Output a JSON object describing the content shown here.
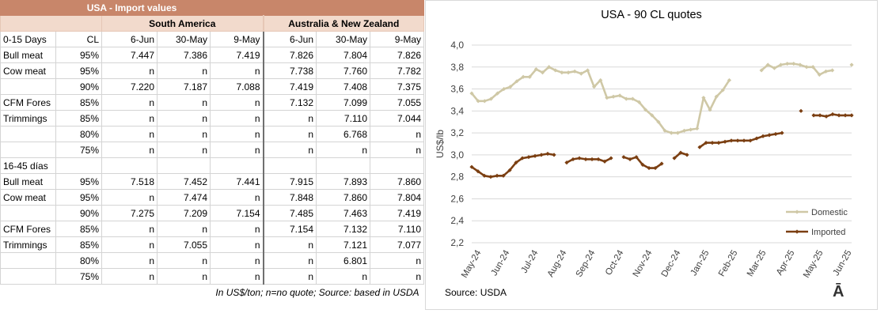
{
  "table": {
    "title": "USA - Import values",
    "regions": [
      "South America",
      "Australia & New Zealand"
    ],
    "header": [
      "0-15 Days",
      "CL",
      "6-Jun",
      "30-May",
      "9-May",
      "6-Jun",
      "30-May",
      "9-May"
    ],
    "rows": [
      [
        "Bull meat",
        "95%",
        "7.447",
        "7.386",
        "7.419",
        "7.826",
        "7.804",
        "7.826"
      ],
      [
        "Cow meat",
        "95%",
        "n",
        "n",
        "n",
        "7.738",
        "7.760",
        "7.782"
      ],
      [
        "",
        "90%",
        "7.220",
        "7.187",
        "7.088",
        "7.419",
        "7.408",
        "7.375"
      ],
      [
        "CFM Fores",
        "85%",
        "n",
        "n",
        "n",
        "7.132",
        "7.099",
        "7.055"
      ],
      [
        "Trimmings",
        "85%",
        "n",
        "n",
        "n",
        "n",
        "7.110",
        "7.044"
      ],
      [
        "",
        "80%",
        "n",
        "n",
        "n",
        "n",
        "6.768",
        "n"
      ],
      [
        "",
        "75%",
        "n",
        "n",
        "n",
        "n",
        "n",
        "n"
      ],
      [
        "16-45 días",
        "",
        "",
        "",
        "",
        "",
        "",
        ""
      ],
      [
        "Bull meat",
        "95%",
        "7.518",
        "7.452",
        "7.441",
        "7.915",
        "7.893",
        "7.860"
      ],
      [
        "Cow meat",
        "95%",
        "n",
        "7.474",
        "n",
        "7.848",
        "7.860",
        "7.804"
      ],
      [
        "",
        "90%",
        "7.275",
        "7.209",
        "7.154",
        "7.485",
        "7.463",
        "7.419"
      ],
      [
        "CFM Fores",
        "85%",
        "n",
        "n",
        "n",
        "7.154",
        "7.132",
        "7.110"
      ],
      [
        "Trimmings",
        "85%",
        "n",
        "7.055",
        "n",
        "n",
        "7.121",
        "7.077"
      ],
      [
        "",
        "80%",
        "n",
        "n",
        "n",
        "n",
        "6.801",
        "n"
      ],
      [
        "",
        "75%",
        "n",
        "n",
        "n",
        "n",
        "n",
        "n"
      ]
    ],
    "note": "In US$/ton; n=no quote; Source: based in USDA"
  },
  "chart_data": {
    "type": "line",
    "title": "USA - 90 CL quotes",
    "ylabel": "US$/lb",
    "xlabel": "",
    "ylim": [
      2.2,
      4.0
    ],
    "yticks": [
      "2,2",
      "2,4",
      "2,6",
      "2,8",
      "3,0",
      "3,2",
      "3,4",
      "3,6",
      "3,8",
      "4,0"
    ],
    "xtick_labels": [
      "May-24",
      "Jun-24",
      "Jul-24",
      "Aug-24",
      "Sep-24",
      "Oct-24",
      "Nov-24",
      "Dec-24",
      "Jan-25",
      "Feb-25",
      "Mar-25",
      "Apr-25",
      "May-25",
      "Jun-25"
    ],
    "grid": true,
    "legend_position": "bottom-right",
    "source": "Source: USDA",
    "series": [
      {
        "name": "Domestic",
        "color": "#cfc8a6",
        "values": [
          3.56,
          3.49,
          3.49,
          3.51,
          3.56,
          3.6,
          3.62,
          3.67,
          3.71,
          3.71,
          3.78,
          3.75,
          3.8,
          3.77,
          3.75,
          3.75,
          3.76,
          3.74,
          3.77,
          3.62,
          3.68,
          3.52,
          3.53,
          3.54,
          3.51,
          3.51,
          3.48,
          3.41,
          3.36,
          3.3,
          3.22,
          3.2,
          3.2,
          3.22,
          3.23,
          3.24,
          3.52,
          3.41,
          3.53,
          3.59,
          3.68,
          null,
          null,
          null,
          null,
          3.77,
          3.82,
          3.79,
          3.82,
          3.83,
          3.83,
          3.82,
          3.8,
          3.8,
          3.73,
          3.76,
          3.77,
          null,
          null,
          3.82
        ]
      },
      {
        "name": "Imported",
        "color": "#7b3f12",
        "values": [
          2.89,
          2.85,
          2.81,
          2.8,
          2.81,
          2.81,
          2.86,
          2.93,
          2.97,
          2.98,
          2.99,
          3.0,
          3.01,
          3.0,
          null,
          2.93,
          2.96,
          2.97,
          2.96,
          2.96,
          2.96,
          2.94,
          2.97,
          null,
          2.98,
          2.96,
          2.98,
          2.91,
          2.88,
          2.88,
          2.92,
          null,
          2.97,
          3.02,
          3.0,
          null,
          3.07,
          3.11,
          3.11,
          3.11,
          3.12,
          3.13,
          3.13,
          3.13,
          3.13,
          3.15,
          3.17,
          3.18,
          3.19,
          3.2,
          null,
          null,
          3.4,
          null,
          3.36,
          3.36,
          3.35,
          3.37,
          3.36,
          3.36,
          3.36
        ]
      }
    ]
  }
}
